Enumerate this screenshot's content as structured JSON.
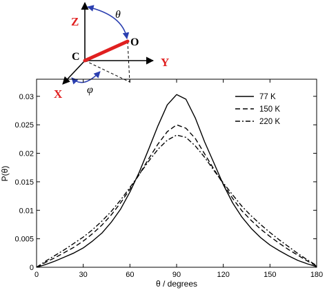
{
  "chart_data": {
    "type": "line",
    "title": "",
    "xlabel": "θ / degrees",
    "ylabel": "P(θ)",
    "xlim": [
      0,
      180
    ],
    "ylim": [
      0,
      0.033
    ],
    "xticks": [
      0,
      30,
      60,
      90,
      120,
      150,
      180
    ],
    "xtick_labels": [
      "0",
      "30",
      "60",
      "90",
      "120",
      "150",
      "180"
    ],
    "yticks": [
      0,
      0.005,
      0.01,
      0.015,
      0.02,
      0.025,
      0.03
    ],
    "ytick_labels": [
      "0",
      "0.005",
      "0.01",
      "0.015",
      "0.02",
      "0.025",
      "0.03"
    ],
    "grid": false,
    "legend_position": "top-right",
    "x": [
      0,
      6,
      12,
      18,
      24,
      30,
      36,
      42,
      48,
      54,
      60,
      66,
      72,
      78,
      84,
      90,
      96,
      102,
      108,
      114,
      120,
      126,
      132,
      138,
      144,
      150,
      156,
      162,
      168,
      174,
      180
    ],
    "series": [
      {
        "name": "77 K",
        "line_style": "solid",
        "values": [
          0.0,
          0.0005,
          0.0011,
          0.0018,
          0.0025,
          0.0034,
          0.0046,
          0.006,
          0.0079,
          0.0102,
          0.0132,
          0.0167,
          0.0207,
          0.0248,
          0.0285,
          0.0303,
          0.0295,
          0.0262,
          0.022,
          0.0183,
          0.0145,
          0.0113,
          0.0088,
          0.0068,
          0.0052,
          0.0039,
          0.0029,
          0.002,
          0.0012,
          0.0006,
          0.0001
        ]
      },
      {
        "name": "150 K",
        "line_style": "dashed",
        "values": [
          0.0,
          0.0009,
          0.0017,
          0.0026,
          0.0035,
          0.0046,
          0.0059,
          0.0074,
          0.0092,
          0.0113,
          0.0137,
          0.0163,
          0.019,
          0.0216,
          0.0238,
          0.025,
          0.0244,
          0.0226,
          0.0199,
          0.0172,
          0.0146,
          0.0121,
          0.0099,
          0.0082,
          0.0067,
          0.0054,
          0.0042,
          0.0031,
          0.0021,
          0.0011,
          0.0002
        ]
      },
      {
        "name": "220 K",
        "line_style": "dashdot",
        "values": [
          0.0,
          0.0011,
          0.0021,
          0.0031,
          0.0042,
          0.0053,
          0.0066,
          0.0081,
          0.0098,
          0.0118,
          0.014,
          0.0163,
          0.0186,
          0.0207,
          0.0223,
          0.0232,
          0.0228,
          0.0213,
          0.0193,
          0.017,
          0.0148,
          0.0127,
          0.0107,
          0.009,
          0.0075,
          0.0061,
          0.0048,
          0.0036,
          0.0024,
          0.0013,
          0.0003
        ]
      }
    ]
  },
  "inset": {
    "axis_z": "Z",
    "axis_y": "Y",
    "axis_x": "X",
    "origin_label": "C",
    "end_label": "O",
    "polar_angle": "θ",
    "azimuth_angle": "φ",
    "axis_label_color": "#e02020",
    "bond_color": "#e02020",
    "arc_color": "#2b3fb0"
  }
}
